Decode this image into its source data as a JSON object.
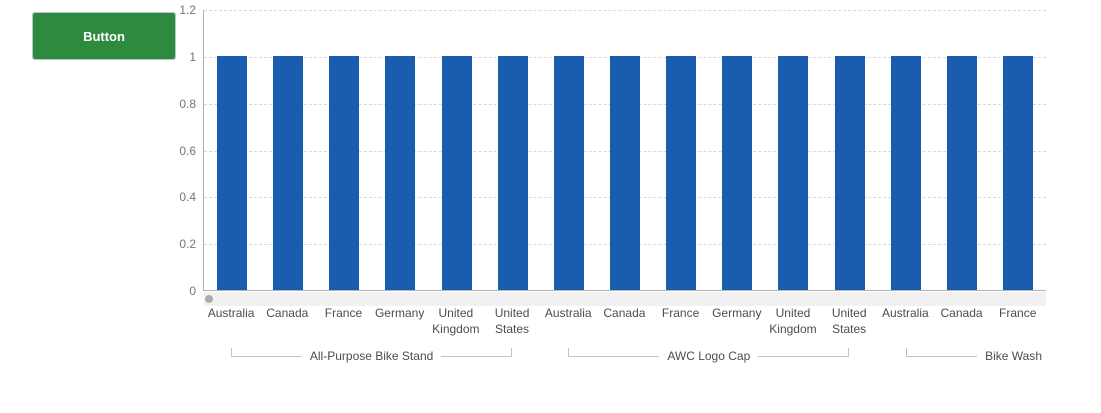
{
  "button": {
    "label": "Button"
  },
  "chart_data": {
    "type": "bar",
    "title": "",
    "xlabel": "",
    "ylabel": "",
    "ylim": [
      0,
      1.2
    ],
    "grid": "horizontal-dashed",
    "legend": "none",
    "y_ticks": [
      {
        "label": "0",
        "value": 0
      },
      {
        "label": "0.2",
        "value": 0.2
      },
      {
        "label": "0.4",
        "value": 0.4
      },
      {
        "label": "0.6",
        "value": 0.6
      },
      {
        "label": "0.8",
        "value": 0.8
      },
      {
        "label": "1",
        "value": 1
      },
      {
        "label": "1.2",
        "value": 1.2
      }
    ],
    "groups": [
      {
        "label": "All-Purpose Bike Stand",
        "categories": [
          "Australia",
          "Canada",
          "France",
          "Germany",
          "United Kingdom",
          "United States"
        ],
        "values": [
          1,
          1,
          1,
          1,
          1,
          1
        ],
        "clipped": false
      },
      {
        "label": "AWC Logo Cap",
        "categories": [
          "Australia",
          "Canada",
          "France",
          "Germany",
          "United Kingdom",
          "United States"
        ],
        "values": [
          1,
          1,
          1,
          1,
          1,
          1
        ],
        "clipped": false
      },
      {
        "label": "Bike Wash",
        "categories": [
          "Australia",
          "Canada",
          "France"
        ],
        "values": [
          1,
          1,
          1
        ],
        "clipped": true
      }
    ],
    "colors": {
      "bar": "#1a5cad",
      "axis": "#b3b3b3",
      "grid": "#d9d9d9",
      "tick_label": "#767676",
      "category_label": "#4d4d4d",
      "group_label": "#4d4d4d",
      "bracket_line": "#c4c4c4",
      "scroll_track": "#f1f1f1",
      "scroll_thumb": "#ababab",
      "button_background": "#2d8a3e"
    },
    "scrollbar": {
      "present": true,
      "thumb_position": "left"
    }
  }
}
